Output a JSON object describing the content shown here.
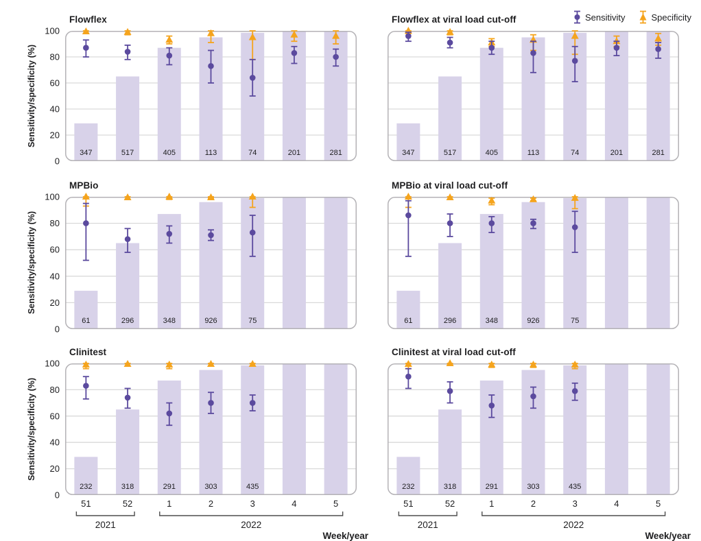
{
  "figure": {
    "legend": {
      "items": [
        {
          "label": "Sensitivity",
          "series": "sensitivity"
        },
        {
          "label": "Specificity",
          "series": "specificity"
        }
      ]
    },
    "axis": {
      "y_title": "Sensitivity/specificity (%)",
      "y_ticks": [
        0,
        20,
        40,
        60,
        80,
        100
      ],
      "ylim": [
        0,
        100
      ],
      "x_weeks": [
        "51",
        "52",
        "1",
        "2",
        "3",
        "4",
        "5"
      ],
      "year_groups": [
        {
          "label": "2021",
          "weeks": [
            "51",
            "52"
          ]
        },
        {
          "label": "2022",
          "weeks": [
            "1",
            "2",
            "3",
            "4",
            "5"
          ]
        }
      ],
      "x_title": "Week/year",
      "grid": true
    }
  },
  "colors": {
    "sensitivity": "#5b4a9e",
    "specificity": "#f5a41d",
    "bar": "#d8d2e9",
    "grid": "#d9d9d9",
    "panel_border": "#b4b2b6",
    "text": "#1d1d1f",
    "axis_line": "#4d4d4d"
  },
  "chart_data": [
    {
      "title": "Flowflex",
      "type": "bar",
      "categories": [
        "51",
        "52",
        "1",
        "2",
        "3",
        "4",
        "5"
      ],
      "bar_values": [
        29,
        65,
        87,
        95,
        98.5,
        99.5,
        99.5
      ],
      "bar_labels": [
        "347",
        "517",
        "405",
        "113",
        "74",
        "201",
        "281"
      ],
      "series": [
        {
          "name": "Sensitivity",
          "values": [
            87,
            84,
            81,
            73,
            64,
            83,
            80
          ],
          "ci_low": [
            80,
            78,
            74,
            60,
            50,
            75,
            73
          ],
          "ci_high": [
            93,
            89,
            87,
            85,
            78,
            88,
            86
          ]
        },
        {
          "name": "Specificity",
          "values": [
            99.5,
            99,
            93,
            98,
            95,
            97,
            96
          ],
          "ci_low": [
            98,
            97,
            90,
            91,
            78,
            92,
            90
          ],
          "ci_high": [
            100,
            100,
            96,
            100,
            100,
            100,
            100
          ]
        }
      ]
    },
    {
      "title": "Flowflex at viral load cut-off",
      "type": "bar",
      "categories": [
        "51",
        "52",
        "1",
        "2",
        "3",
        "4",
        "5"
      ],
      "bar_values": [
        29,
        65,
        87,
        95,
        98.5,
        99.5,
        99.5
      ],
      "bar_labels": [
        "347",
        "517",
        "405",
        "113",
        "74",
        "201",
        "281"
      ],
      "series": [
        {
          "name": "Sensitivity",
          "values": [
            96,
            91,
            87,
            83,
            77,
            87,
            86
          ],
          "ci_low": [
            92,
            87,
            82,
            68,
            61,
            81,
            79
          ],
          "ci_high": [
            99,
            95,
            92,
            92,
            88,
            92,
            91
          ]
        },
        {
          "name": "Specificity",
          "values": [
            100,
            99,
            91,
            93,
            96,
            92,
            94
          ],
          "ci_low": [
            98,
            97,
            88,
            85,
            82,
            88,
            89
          ],
          "ci_high": [
            100,
            100,
            94,
            97,
            100,
            96,
            98
          ]
        }
      ]
    },
    {
      "title": "MPBio",
      "type": "bar",
      "categories": [
        "51",
        "52",
        "1",
        "2",
        "3",
        "4",
        "5"
      ],
      "bar_values": [
        29,
        65,
        87,
        96,
        99,
        100,
        100
      ],
      "bar_labels": [
        "61",
        "296",
        "348",
        "926",
        "75",
        "",
        ""
      ],
      "series": [
        {
          "name": "Sensitivity",
          "values": [
            80,
            68,
            72,
            71,
            73,
            null,
            null
          ],
          "ci_low": [
            52,
            58,
            65,
            67,
            55,
            null,
            null
          ],
          "ci_high": [
            95,
            76,
            78,
            75,
            86,
            null,
            null
          ]
        },
        {
          "name": "Specificity",
          "values": [
            100,
            99.5,
            100,
            99.5,
            100,
            null,
            null
          ],
          "ci_low": [
            93,
            98,
            98,
            99,
            92,
            null,
            null
          ],
          "ci_high": [
            100,
            100,
            100,
            100,
            100,
            null,
            null
          ]
        }
      ]
    },
    {
      "title": "MPBio at viral load cut-off",
      "type": "bar",
      "categories": [
        "51",
        "52",
        "1",
        "2",
        "3",
        "4",
        "5"
      ],
      "bar_values": [
        29,
        65,
        87,
        96,
        99,
        100,
        100
      ],
      "bar_labels": [
        "61",
        "296",
        "348",
        "926",
        "75",
        "",
        ""
      ],
      "series": [
        {
          "name": "Sensitivity",
          "values": [
            86,
            80,
            80,
            80,
            77,
            null,
            null
          ],
          "ci_low": [
            55,
            70,
            73,
            76,
            58,
            null,
            null
          ],
          "ci_high": [
            97,
            87,
            85,
            83,
            89,
            null,
            null
          ]
        },
        {
          "name": "Specificity",
          "values": [
            100,
            99.5,
            97,
            98,
            99,
            null,
            null
          ],
          "ci_low": [
            92,
            98,
            94,
            97,
            91,
            null,
            null
          ],
          "ci_high": [
            100,
            100,
            99,
            99,
            100,
            null,
            null
          ]
        }
      ]
    },
    {
      "title": "Clinitest",
      "type": "bar",
      "categories": [
        "51",
        "52",
        "1",
        "2",
        "3",
        "4",
        "5"
      ],
      "bar_values": [
        29,
        65,
        87,
        95,
        98.5,
        99.5,
        99.5
      ],
      "bar_labels": [
        "232",
        "318",
        "291",
        "303",
        "435",
        "",
        ""
      ],
      "series": [
        {
          "name": "Sensitivity",
          "values": [
            83,
            74,
            62,
            70,
            70,
            null,
            null
          ],
          "ci_low": [
            73,
            66,
            53,
            62,
            64,
            null,
            null
          ],
          "ci_high": [
            90,
            81,
            70,
            78,
            76,
            null,
            null
          ]
        },
        {
          "name": "Specificity",
          "values": [
            99,
            99.5,
            99,
            99.5,
            99.5,
            null,
            null
          ],
          "ci_low": [
            96,
            98,
            96,
            98,
            98,
            null,
            null
          ],
          "ci_high": [
            100,
            100,
            100,
            100,
            100,
            null,
            null
          ]
        }
      ]
    },
    {
      "title": "Clinitest at viral load cut-off",
      "type": "bar",
      "categories": [
        "51",
        "52",
        "1",
        "2",
        "3",
        "4",
        "5"
      ],
      "bar_values": [
        29,
        65,
        87,
        95,
        98.5,
        100,
        100
      ],
      "bar_labels": [
        "232",
        "318",
        "291",
        "303",
        "435",
        "",
        ""
      ],
      "series": [
        {
          "name": "Sensitivity",
          "values": [
            90,
            79,
            68,
            75,
            79,
            null,
            null
          ],
          "ci_low": [
            81,
            70,
            59,
            66,
            72,
            null,
            null
          ],
          "ci_high": [
            96,
            86,
            76,
            82,
            85,
            null,
            null
          ]
        },
        {
          "name": "Specificity",
          "values": [
            99.5,
            100,
            99,
            99,
            99,
            null,
            null
          ],
          "ci_low": [
            96,
            99,
            97,
            97,
            96,
            null,
            null
          ],
          "ci_high": [
            100,
            100,
            100,
            100,
            100,
            null,
            null
          ]
        }
      ]
    }
  ]
}
